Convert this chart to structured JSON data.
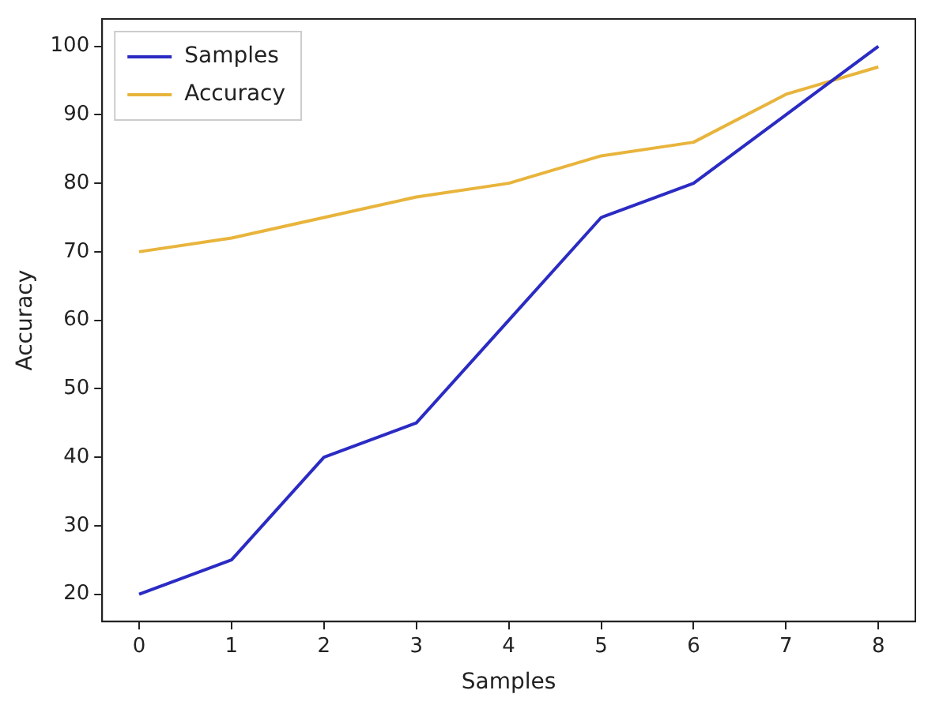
{
  "chart_data": {
    "type": "line",
    "xlabel": "Samples",
    "ylabel": "Accuracy",
    "x": [
      0,
      1,
      2,
      3,
      4,
      5,
      6,
      7,
      8
    ],
    "series": [
      {
        "name": "Samples",
        "color": "#2b2bc4",
        "values": [
          20,
          25,
          40,
          45,
          60,
          75,
          80,
          90,
          100
        ]
      },
      {
        "name": "Accuracy",
        "color": "#e8b43c",
        "values": [
          70,
          72,
          75,
          78,
          80,
          84,
          86,
          93,
          97
        ]
      }
    ],
    "xlim": [
      -0.4,
      8.4
    ],
    "xticks": [
      0,
      1,
      2,
      3,
      4,
      5,
      6,
      7,
      8
    ],
    "ylim": [
      16,
      104
    ],
    "yticks": [
      20,
      30,
      40,
      50,
      60,
      70,
      80,
      90,
      100
    ],
    "grid": false,
    "legend": "top left",
    "marker": "none",
    "line_style": "solid"
  }
}
